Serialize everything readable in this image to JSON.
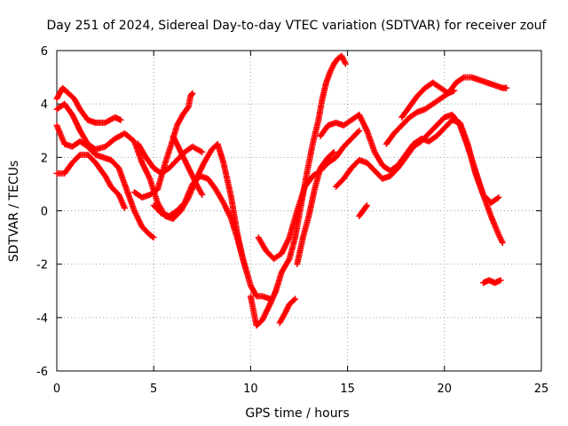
{
  "chart_data": {
    "type": "scatter",
    "title": "Day 251 of 2024, Sidereal Day-to-day VTEC variation (SDTVAR) for receiver zouf",
    "xlabel": "GPS time / hours",
    "ylabel": "SDTVAR / TECUs",
    "xlim": [
      0,
      25
    ],
    "ylim": [
      -6,
      6
    ],
    "x_ticks": [
      "0",
      "5",
      "10",
      "15",
      "20",
      "25"
    ],
    "y_ticks": [
      "-6",
      "-4",
      "-2",
      "0",
      "2",
      "4",
      "6"
    ],
    "grid": true,
    "marker": "plus",
    "color": "#ff0000",
    "series": [
      {
        "points": [
          [
            0,
            4.2
          ],
          [
            0.3,
            4.6
          ],
          [
            0.6,
            4.4
          ],
          [
            0.9,
            4.2
          ],
          [
            1.2,
            3.8
          ],
          [
            1.6,
            3.4
          ],
          [
            2,
            3.3
          ],
          [
            2.5,
            3.3
          ],
          [
            3,
            3.5
          ],
          [
            3.3,
            3.4
          ]
        ]
      },
      {
        "points": [
          [
            0,
            3.8
          ],
          [
            0.4,
            4.0
          ],
          [
            0.8,
            3.6
          ],
          [
            1.2,
            3.0
          ],
          [
            1.6,
            2.5
          ],
          [
            2,
            2.3
          ],
          [
            2.5,
            2.4
          ],
          [
            3,
            2.7
          ],
          [
            3.5,
            2.9
          ],
          [
            4,
            2.6
          ],
          [
            4.4,
            1.8
          ],
          [
            4.8,
            1.2
          ],
          [
            5.2,
            0.3
          ],
          [
            5.6,
            -0.2
          ],
          [
            6,
            -0.3
          ],
          [
            6.4,
            0.0
          ],
          [
            6.8,
            0.5
          ],
          [
            7.2,
            1.2
          ],
          [
            7.6,
            1.8
          ],
          [
            8,
            2.3
          ],
          [
            8.3,
            2.5
          ],
          [
            8.6,
            1.8
          ],
          [
            9,
            0.5
          ],
          [
            9.3,
            -0.8
          ],
          [
            9.6,
            -1.8
          ],
          [
            10,
            -2.8
          ],
          [
            10.3,
            -3.2
          ],
          [
            10.6,
            -3.2
          ],
          [
            11,
            -3.3
          ]
        ]
      },
      {
        "points": [
          [
            0,
            1.4
          ],
          [
            0.4,
            1.4
          ],
          [
            0.8,
            1.8
          ],
          [
            1.2,
            2.1
          ],
          [
            1.6,
            2.1
          ],
          [
            2,
            1.8
          ],
          [
            2.5,
            1.3
          ],
          [
            2.8,
            0.9
          ],
          [
            3.2,
            0.6
          ],
          [
            3.5,
            0.1
          ]
        ]
      },
      {
        "points": [
          [
            0,
            3.2
          ],
          [
            0.4,
            2.5
          ],
          [
            0.8,
            2.4
          ],
          [
            1.2,
            2.6
          ],
          [
            1.6,
            2.4
          ],
          [
            2,
            2.1
          ],
          [
            2.4,
            2.0
          ],
          [
            2.8,
            1.9
          ],
          [
            3.2,
            1.6
          ],
          [
            3.6,
            0.8
          ],
          [
            4,
            0.0
          ],
          [
            4.4,
            -0.6
          ],
          [
            4.8,
            -0.9
          ],
          [
            5,
            -1.0
          ]
        ]
      },
      {
        "points": [
          [
            4,
            0.7
          ],
          [
            4.4,
            0.5
          ],
          [
            4.8,
            0.6
          ],
          [
            5.2,
            0.8
          ],
          [
            5.6,
            1.8
          ],
          [
            6,
            2.7
          ],
          [
            6.2,
            3.2
          ],
          [
            6.5,
            3.6
          ],
          [
            6.8,
            3.9
          ],
          [
            6.9,
            4.3
          ],
          [
            7.0,
            4.4
          ]
        ]
      },
      {
        "points": [
          [
            5,
            0.2
          ],
          [
            5.4,
            -0.1
          ],
          [
            5.8,
            -0.2
          ],
          [
            6.2,
            0.0
          ],
          [
            6.6,
            0.3
          ],
          [
            7,
            1.0
          ],
          [
            7.4,
            1.3
          ],
          [
            7.8,
            1.2
          ],
          [
            8.2,
            0.8
          ],
          [
            8.6,
            0.3
          ],
          [
            9,
            -0.3
          ],
          [
            9.3,
            -1.0
          ],
          [
            9.6,
            -1.8
          ],
          [
            9.8,
            -2.3
          ]
        ]
      },
      {
        "points": [
          [
            4.2,
            2.5
          ],
          [
            4.6,
            2.0
          ],
          [
            5,
            1.6
          ],
          [
            5.4,
            1.4
          ],
          [
            5.8,
            1.6
          ],
          [
            6.2,
            1.9
          ],
          [
            6.6,
            2.2
          ],
          [
            7,
            2.4
          ],
          [
            7.5,
            2.2
          ]
        ]
      },
      {
        "points": [
          [
            6,
            2.8
          ],
          [
            6.4,
            2.2
          ],
          [
            6.8,
            1.6
          ],
          [
            7.2,
            1.0
          ],
          [
            7.5,
            0.6
          ]
        ]
      },
      {
        "points": [
          [
            10,
            -3.2
          ],
          [
            10.3,
            -4.3
          ],
          [
            10.6,
            -4.1
          ],
          [
            11,
            -3.5
          ],
          [
            11.3,
            -3.0
          ],
          [
            11.6,
            -2.3
          ],
          [
            12,
            -1.8
          ],
          [
            12.3,
            -1.0
          ],
          [
            12.6,
            0.2
          ],
          [
            12.9,
            1.4
          ],
          [
            13.2,
            2.5
          ],
          [
            13.5,
            3.4
          ],
          [
            13.7,
            4.2
          ],
          [
            13.9,
            4.8
          ],
          [
            14.1,
            5.2
          ],
          [
            14.3,
            5.5
          ],
          [
            14.5,
            5.7
          ],
          [
            14.7,
            5.8
          ],
          [
            14.9,
            5.5
          ]
        ]
      },
      {
        "points": [
          [
            10.4,
            -1.0
          ],
          [
            10.8,
            -1.5
          ],
          [
            11.2,
            -1.8
          ],
          [
            11.6,
            -1.6
          ],
          [
            12,
            -1.0
          ],
          [
            12.4,
            0.0
          ],
          [
            12.8,
            0.9
          ],
          [
            13.2,
            1.3
          ],
          [
            13.6,
            1.5
          ],
          [
            14,
            1.8
          ],
          [
            14.4,
            2.0
          ],
          [
            14.8,
            2.4
          ],
          [
            15.2,
            2.7
          ],
          [
            15.6,
            3.0
          ]
        ]
      },
      {
        "points": [
          [
            11.5,
            -4.2
          ],
          [
            11.8,
            -3.8
          ],
          [
            12,
            -3.5
          ],
          [
            12.3,
            -3.3
          ]
        ]
      },
      {
        "points": [
          [
            12.4,
            -2.0
          ],
          [
            12.7,
            -1.0
          ],
          [
            13,
            -0.2
          ],
          [
            13.3,
            0.8
          ],
          [
            13.6,
            1.6
          ],
          [
            14,
            2.0
          ],
          [
            14.3,
            2.2
          ]
        ]
      },
      {
        "points": [
          [
            13.6,
            2.8
          ],
          [
            14,
            3.2
          ],
          [
            14.4,
            3.3
          ],
          [
            14.8,
            3.2
          ],
          [
            15.2,
            3.4
          ],
          [
            15.6,
            3.6
          ],
          [
            16,
            3.0
          ],
          [
            16.4,
            2.2
          ],
          [
            16.8,
            1.7
          ],
          [
            17.2,
            1.5
          ],
          [
            17.6,
            1.7
          ],
          [
            18,
            2.1
          ],
          [
            18.4,
            2.5
          ],
          [
            18.8,
            2.7
          ],
          [
            19.2,
            2.6
          ],
          [
            19.6,
            2.8
          ],
          [
            20,
            3.1
          ],
          [
            20.4,
            3.4
          ],
          [
            20.8,
            3.3
          ],
          [
            21.2,
            2.5
          ],
          [
            21.6,
            1.4
          ],
          [
            22,
            0.6
          ],
          [
            22.4,
            0.3
          ],
          [
            22.8,
            0.5
          ]
        ]
      },
      {
        "points": [
          [
            14.4,
            0.9
          ],
          [
            14.8,
            1.2
          ],
          [
            15.2,
            1.6
          ],
          [
            15.6,
            1.9
          ],
          [
            16,
            1.8
          ],
          [
            16.4,
            1.5
          ],
          [
            16.8,
            1.2
          ],
          [
            17.2,
            1.3
          ],
          [
            17.6,
            1.6
          ],
          [
            18,
            2.0
          ],
          [
            18.4,
            2.4
          ],
          [
            18.8,
            2.6
          ],
          [
            19.2,
            2.9
          ],
          [
            19.6,
            3.2
          ],
          [
            20,
            3.5
          ],
          [
            20.4,
            3.6
          ],
          [
            20.8,
            3.2
          ],
          [
            21.2,
            2.4
          ],
          [
            21.6,
            1.5
          ],
          [
            22,
            0.6
          ],
          [
            22.4,
            -0.2
          ],
          [
            22.8,
            -0.9
          ],
          [
            23,
            -1.2
          ]
        ]
      },
      {
        "points": [
          [
            17,
            2.5
          ],
          [
            17.4,
            2.9
          ],
          [
            17.8,
            3.2
          ],
          [
            18.2,
            3.5
          ],
          [
            18.6,
            3.7
          ],
          [
            19,
            3.8
          ],
          [
            19.4,
            4.0
          ],
          [
            19.8,
            4.2
          ],
          [
            20.2,
            4.4
          ],
          [
            20.6,
            4.8
          ],
          [
            21,
            5.0
          ],
          [
            21.4,
            5.0
          ],
          [
            21.8,
            4.9
          ],
          [
            22.2,
            4.8
          ],
          [
            22.6,
            4.7
          ],
          [
            23,
            4.6
          ],
          [
            23.2,
            4.6
          ]
        ]
      },
      {
        "points": [
          [
            17.8,
            3.5
          ],
          [
            18.2,
            3.9
          ],
          [
            18.6,
            4.3
          ],
          [
            19,
            4.6
          ],
          [
            19.4,
            4.8
          ],
          [
            19.8,
            4.6
          ],
          [
            20.2,
            4.4
          ],
          [
            20.5,
            4.5
          ]
        ]
      },
      {
        "points": [
          [
            15.6,
            -0.2
          ],
          [
            15.8,
            0.0
          ],
          [
            16,
            0.2
          ]
        ]
      },
      {
        "points": [
          [
            22,
            -2.7
          ],
          [
            22.3,
            -2.6
          ],
          [
            22.6,
            -2.7
          ],
          [
            22.9,
            -2.6
          ]
        ]
      }
    ]
  }
}
